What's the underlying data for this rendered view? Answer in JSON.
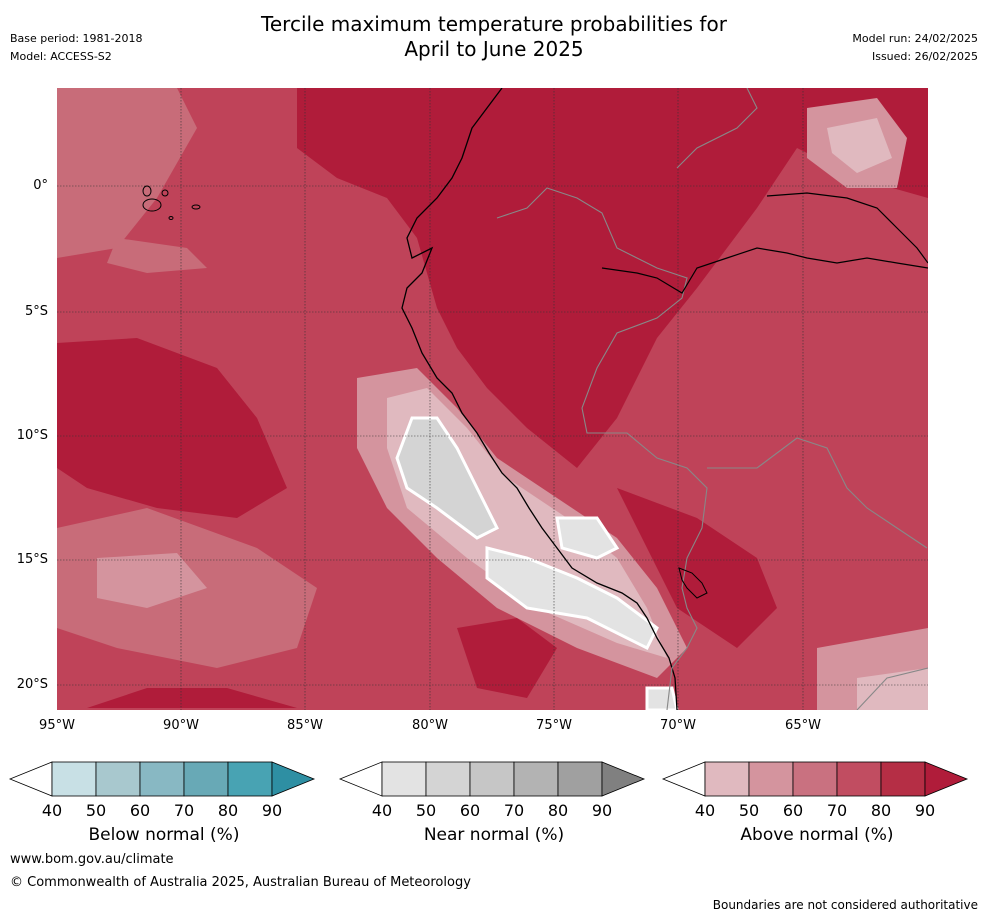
{
  "title": {
    "line1": "Tercile maximum temperature probabilities for",
    "line2": "April to June 2025"
  },
  "meta": {
    "base_period": "Base period: 1981-2018",
    "model": "Model: ACCESS-S2",
    "model_run": "Model run: 24/02/2025",
    "issued": "Issued: 26/02/2025"
  },
  "map": {
    "lat_ticks": [
      "0°",
      "5°S",
      "10°S",
      "15°S",
      "20°S"
    ],
    "lon_ticks": [
      "95°W",
      "90°W",
      "85°W",
      "80°W",
      "75°W",
      "70°W",
      "65°W"
    ]
  },
  "colorbars": {
    "below": {
      "label": "Below normal (%)",
      "ticks": [
        "40",
        "50",
        "60",
        "70",
        "80",
        "90"
      ],
      "colors": [
        "#ffffff",
        "#c8e0e5",
        "#a8c8ce",
        "#88b8c3",
        "#68a9b6",
        "#48a3b3",
        "#2e8fa3"
      ]
    },
    "near": {
      "label": "Near normal (%)",
      "ticks": [
        "40",
        "50",
        "60",
        "70",
        "80",
        "90"
      ],
      "colors": [
        "#ffffff",
        "#e3e3e3",
        "#d4d4d4",
        "#c6c6c6",
        "#b3b3b3",
        "#a0a0a0",
        "#808080"
      ]
    },
    "above": {
      "label": "Above normal (%)",
      "ticks": [
        "40",
        "50",
        "60",
        "70",
        "80",
        "90"
      ],
      "colors": [
        "#ffffff",
        "#e0b9bf",
        "#d4949e",
        "#c97180",
        "#c14d61",
        "#b52e45",
        "#b01c3a"
      ]
    }
  },
  "footer": {
    "url": "www.bom.gov.au/climate",
    "copyright": "© Commonwealth of Australia 2025, Australian Bureau of Meteorology",
    "disclaimer": "Boundaries are not considered authoritative"
  }
}
